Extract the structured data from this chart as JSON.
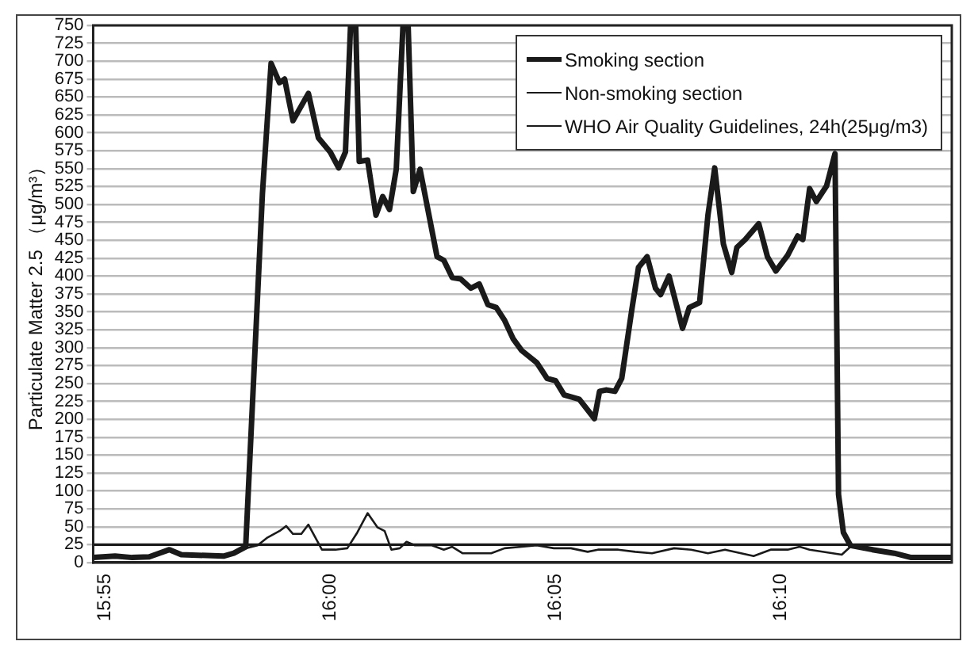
{
  "chart_data": {
    "type": "line",
    "ylabel": "Particulate Matter 2.5 （μg/m³）",
    "xlim": [
      15.9123,
      16.2299
    ],
    "xticks": [
      {
        "value": 15.9167,
        "label": "15:55"
      },
      {
        "value": 16,
        "label": "16:00"
      },
      {
        "value": 16.0833,
        "label": "16:05"
      },
      {
        "value": 16.1667,
        "label": "16:10"
      }
    ],
    "ylim": [
      0,
      750
    ],
    "yticks": [
      0,
      25,
      50,
      75,
      100,
      125,
      150,
      175,
      200,
      225,
      250,
      275,
      300,
      325,
      350,
      375,
      400,
      425,
      450,
      475,
      500,
      525,
      550,
      575,
      600,
      625,
      650,
      675,
      700,
      725,
      750
    ],
    "grid": "y",
    "legend": "top right",
    "marker": "none",
    "line_style": "solid",
    "series": [
      {
        "name": "Smoking section",
        "color": "#1a1a1a",
        "x": [
          15.9123,
          15.9204,
          15.9267,
          15.933,
          15.9405,
          15.9449,
          15.9605,
          15.9643,
          15.9687,
          15.9749,
          15.9781,
          15.9812,
          15.9831,
          15.9862,
          15.9919,
          15.9956,
          16.0,
          16.0031,
          16.0056,
          16.0075,
          16.0094,
          16.0107,
          16.0138,
          16.0169,
          16.0194,
          16.0219,
          16.0244,
          16.0269,
          16.0288,
          16.0307,
          16.0332,
          16.0395,
          16.042,
          16.0451,
          16.0482,
          16.052,
          16.0551,
          16.0583,
          16.0614,
          16.0645,
          16.0677,
          16.0708,
          16.0764,
          16.0802,
          16.0833,
          16.0865,
          16.0921,
          16.0977,
          16.0996,
          16.1021,
          16.1053,
          16.1078,
          16.1115,
          16.114,
          16.1172,
          16.1203,
          16.1222,
          16.1253,
          16.1303,
          16.1328,
          16.1366,
          16.1397,
          16.1422,
          16.1454,
          16.1485,
          16.1504,
          16.1535,
          16.1585,
          16.1617,
          16.1648,
          16.1692,
          16.1729,
          16.1748,
          16.1773,
          16.1798,
          16.1836,
          16.1867,
          16.188,
          16.1898,
          16.1924,
          16.2005,
          16.2086,
          16.2149,
          16.2299
        ],
        "values": [
          7,
          9,
          7,
          8,
          18,
          11,
          9,
          13,
          22,
          515,
          697,
          670,
          675,
          617,
          655,
          593,
          573,
          551,
          573,
          750,
          750,
          560,
          562,
          485,
          511,
          493,
          549,
          750,
          750,
          518,
          549,
          427,
          422,
          398,
          396,
          383,
          389,
          360,
          356,
          338,
          312,
          296,
          279,
          257,
          254,
          234,
          228,
          201,
          239,
          241,
          239,
          257,
          352,
          412,
          427,
          383,
          374,
          400,
          327,
          356,
          363,
          485,
          551,
          445,
          405,
          440,
          451,
          473,
          427,
          407,
          429,
          456,
          451,
          522,
          504,
          526,
          571,
          95,
          42,
          24,
          18,
          13,
          7,
          7
        ]
      },
      {
        "name": "Non-smoking section",
        "color": "#1a1a1a",
        "x": [
          15.9123,
          15.9204,
          15.933,
          15.9405,
          15.9449,
          15.9605,
          15.9655,
          15.9687,
          15.9731,
          15.9768,
          15.9812,
          15.9837,
          15.9862,
          15.9893,
          15.9919,
          15.9969,
          16.0019,
          16.0063,
          16.01,
          16.0138,
          16.0175,
          16.0201,
          16.0226,
          16.0257,
          16.0282,
          16.0313,
          16.0376,
          16.042,
          16.0451,
          16.0489,
          16.0564,
          16.0595,
          16.0645,
          16.0708,
          16.0764,
          16.0827,
          16.089,
          16.0952,
          16.099,
          16.1065,
          16.1128,
          16.119,
          16.1272,
          16.1335,
          16.1397,
          16.146,
          16.1566,
          16.1629,
          16.1692,
          16.1736,
          16.1773,
          16.1892,
          16.1924,
          16.2005,
          16.2086,
          16.2149,
          16.2299
        ],
        "values": [
          7,
          9,
          7,
          18,
          11,
          9,
          15,
          20,
          24,
          35,
          44,
          51,
          40,
          40,
          53,
          18,
          18,
          20,
          42,
          69,
          49,
          44,
          18,
          20,
          29,
          24,
          24,
          18,
          22,
          13,
          13,
          13,
          20,
          22,
          24,
          20,
          20,
          15,
          18,
          18,
          15,
          13,
          20,
          18,
          13,
          18,
          9,
          18,
          18,
          22,
          18,
          11,
          22,
          20,
          13,
          7,
          7
        ]
      },
      {
        "name": "WHO Air Quality Guidelines, 24h(25μg/m3)",
        "color": "#1a1a1a",
        "x": [
          15.9123,
          16.2299
        ],
        "values": [
          25,
          25
        ]
      }
    ]
  }
}
